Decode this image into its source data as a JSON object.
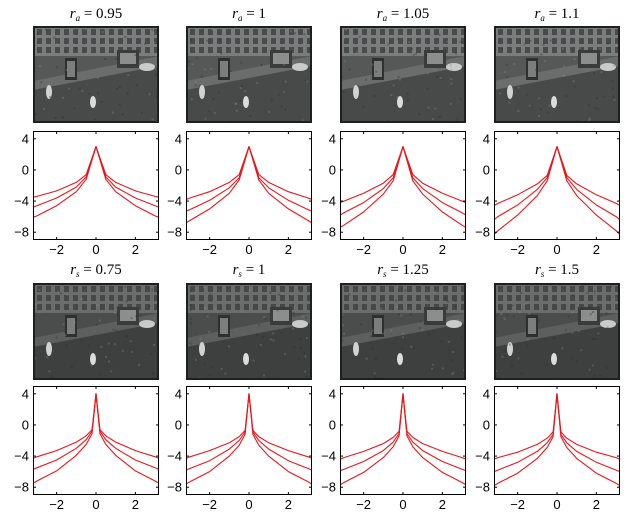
{
  "chart_data": [
    {
      "type": "line",
      "title_symbol": "r",
      "title_subscript": "a",
      "title_value": "0.95",
      "xlim": [
        -3.2,
        3.2
      ],
      "ylim": [
        -9,
        5
      ],
      "xticks": [
        -2,
        0,
        2
      ],
      "yticks": [
        4,
        0,
        -4,
        -8
      ],
      "x": [
        -3.2,
        -3,
        -2,
        -1,
        -0.5,
        0,
        0.5,
        1,
        2,
        3,
        3.2
      ],
      "series": [
        {
          "values": [
            -3.5,
            -3.4,
            -2.7,
            -1.6,
            -0.6,
            3,
            -0.6,
            -1.6,
            -2.7,
            -3.4,
            -3.5
          ]
        },
        {
          "values": [
            -4.8,
            -4.6,
            -3.6,
            -2.2,
            -0.9,
            3,
            -0.9,
            -2.2,
            -3.6,
            -4.6,
            -4.8
          ]
        },
        {
          "values": [
            -6.1,
            -5.9,
            -4.6,
            -2.8,
            -1.2,
            3,
            -1.2,
            -2.8,
            -4.6,
            -5.9,
            -6.1
          ]
        }
      ],
      "color": "#e8161b"
    },
    {
      "type": "line",
      "title_symbol": "r",
      "title_subscript": "a",
      "title_value": "1",
      "xlim": [
        -3.2,
        3.2
      ],
      "ylim": [
        -9,
        5
      ],
      "xticks": [
        -2,
        0,
        2
      ],
      "yticks": [
        4,
        0,
        -4,
        -8
      ],
      "x": [
        -3.2,
        -3,
        -2,
        -1,
        -0.5,
        0,
        0.5,
        1,
        2,
        3,
        3.2
      ],
      "series": [
        {
          "values": [
            -3.8,
            -3.6,
            -2.8,
            -1.6,
            -0.6,
            3,
            -0.6,
            -1.6,
            -2.8,
            -3.6,
            -3.8
          ]
        },
        {
          "values": [
            -5.3,
            -5.1,
            -3.9,
            -2.3,
            -1.0,
            3,
            -1.0,
            -2.3,
            -3.9,
            -5.1,
            -5.3
          ]
        },
        {
          "values": [
            -6.8,
            -6.5,
            -5.0,
            -3.0,
            -1.3,
            3,
            -1.3,
            -3.0,
            -5.0,
            -6.5,
            -6.8
          ]
        }
      ],
      "color": "#e8161b"
    },
    {
      "type": "line",
      "title_symbol": "r",
      "title_subscript": "a",
      "title_value": "1.05",
      "xlim": [
        -3.2,
        3.2
      ],
      "ylim": [
        -9,
        5
      ],
      "xticks": [
        -2,
        0,
        2
      ],
      "yticks": [
        4,
        0,
        -4,
        -8
      ],
      "x": [
        -3.2,
        -3,
        -2,
        -1,
        -0.5,
        0,
        0.5,
        1,
        2,
        3,
        3.2
      ],
      "series": [
        {
          "values": [
            -4.2,
            -4.0,
            -3.0,
            -1.7,
            -0.6,
            3,
            -0.6,
            -1.7,
            -3.0,
            -4.0,
            -4.2
          ]
        },
        {
          "values": [
            -5.8,
            -5.5,
            -4.2,
            -2.4,
            -1.0,
            3,
            -1.0,
            -2.4,
            -4.2,
            -5.5,
            -5.8
          ]
        },
        {
          "values": [
            -7.4,
            -7.1,
            -5.4,
            -3.1,
            -1.4,
            3,
            -1.4,
            -3.1,
            -5.4,
            -7.1,
            -7.4
          ]
        }
      ],
      "color": "#e8161b"
    },
    {
      "type": "line",
      "title_symbol": "r",
      "title_subscript": "a",
      "title_value": "1.1",
      "xlim": [
        -3.2,
        3.2
      ],
      "ylim": [
        -9,
        5
      ],
      "xticks": [
        -2,
        0,
        2
      ],
      "yticks": [
        4,
        0,
        -4,
        -8
      ],
      "x": [
        -3.2,
        -3,
        -2,
        -1,
        -0.5,
        0,
        0.5,
        1,
        2,
        3,
        3.2
      ],
      "series": [
        {
          "values": [
            -4.6,
            -4.3,
            -3.2,
            -1.8,
            -0.7,
            3,
            -0.7,
            -1.8,
            -3.2,
            -4.3,
            -4.6
          ]
        },
        {
          "values": [
            -6.4,
            -6.0,
            -4.5,
            -2.5,
            -1.0,
            3,
            -1.0,
            -2.5,
            -4.5,
            -6.0,
            -6.4
          ]
        },
        {
          "values": [
            -8.3,
            -7.8,
            -5.8,
            -3.3,
            -1.4,
            3,
            -1.4,
            -3.3,
            -5.8,
            -7.8,
            -8.3
          ]
        }
      ],
      "color": "#e8161b"
    },
    {
      "type": "line",
      "title_symbol": "r",
      "title_subscript": "s",
      "title_value": "0.75",
      "xlim": [
        -3.2,
        3.2
      ],
      "ylim": [
        -9,
        5
      ],
      "xticks": [
        -2,
        0,
        2
      ],
      "yticks": [
        4,
        0,
        -4,
        -8
      ],
      "x": [
        -3.2,
        -3,
        -2,
        -1,
        -0.5,
        -0.2,
        0,
        0.2,
        0.5,
        1,
        2,
        3,
        3.2
      ],
      "series": [
        {
          "values": [
            -4.3,
            -4.1,
            -3.3,
            -2.2,
            -1.4,
            -0.6,
            4,
            -0.6,
            -1.4,
            -2.2,
            -3.3,
            -4.1,
            -4.3
          ]
        },
        {
          "values": [
            -5.7,
            -5.5,
            -4.5,
            -3.0,
            -1.9,
            -0.8,
            4,
            -0.8,
            -1.9,
            -3.0,
            -4.5,
            -5.5,
            -5.7
          ]
        },
        {
          "values": [
            -7.5,
            -7.2,
            -5.9,
            -3.9,
            -2.5,
            -1.1,
            4,
            -1.1,
            -2.5,
            -3.9,
            -5.9,
            -7.2,
            -7.5
          ]
        }
      ],
      "color": "#e8161b"
    },
    {
      "type": "line",
      "title_symbol": "r",
      "title_subscript": "s",
      "title_value": "1",
      "xlim": [
        -3.2,
        3.2
      ],
      "ylim": [
        -9,
        5
      ],
      "xticks": [
        -2,
        0,
        2
      ],
      "yticks": [
        4,
        0,
        -4,
        -8
      ],
      "x": [
        -3.2,
        -3,
        -2,
        -1,
        -0.5,
        -0.2,
        0,
        0.2,
        0.5,
        1,
        2,
        3,
        3.2
      ],
      "series": [
        {
          "values": [
            -4.3,
            -4.1,
            -3.3,
            -2.3,
            -1.5,
            -0.7,
            4,
            -0.7,
            -1.5,
            -2.3,
            -3.3,
            -4.1,
            -4.3
          ]
        },
        {
          "values": [
            -5.8,
            -5.6,
            -4.6,
            -3.1,
            -2.0,
            -0.9,
            4,
            -0.9,
            -2.0,
            -3.1,
            -4.6,
            -5.6,
            -5.8
          ]
        },
        {
          "values": [
            -7.6,
            -7.3,
            -6.0,
            -4.0,
            -2.6,
            -1.2,
            4,
            -1.2,
            -2.6,
            -4.0,
            -6.0,
            -7.3,
            -7.6
          ]
        }
      ],
      "color": "#e8161b"
    },
    {
      "type": "line",
      "title_symbol": "r",
      "title_subscript": "s",
      "title_value": "1.25",
      "xlim": [
        -3.2,
        3.2
      ],
      "ylim": [
        -9,
        5
      ],
      "xticks": [
        -2,
        0,
        2
      ],
      "yticks": [
        4,
        0,
        -4,
        -8
      ],
      "x": [
        -3.2,
        -3,
        -2,
        -1,
        -0.5,
        -0.2,
        0,
        0.2,
        0.5,
        1,
        2,
        3,
        3.2
      ],
      "series": [
        {
          "values": [
            -4.4,
            -4.2,
            -3.4,
            -2.4,
            -1.6,
            -0.8,
            4,
            -0.8,
            -1.6,
            -2.4,
            -3.4,
            -4.2,
            -4.4
          ]
        },
        {
          "values": [
            -5.9,
            -5.7,
            -4.7,
            -3.3,
            -2.2,
            -1.1,
            4,
            -1.1,
            -2.2,
            -3.3,
            -4.7,
            -5.7,
            -5.9
          ]
        },
        {
          "values": [
            -7.7,
            -7.4,
            -6.1,
            -4.2,
            -2.8,
            -1.4,
            4,
            -1.4,
            -2.8,
            -4.2,
            -6.1,
            -7.4,
            -7.7
          ]
        }
      ],
      "color": "#e8161b"
    },
    {
      "type": "line",
      "title_symbol": "r",
      "title_subscript": "s",
      "title_value": "1.5",
      "xlim": [
        -3.2,
        3.2
      ],
      "ylim": [
        -9,
        5
      ],
      "xticks": [
        -2,
        0,
        2
      ],
      "yticks": [
        4,
        0,
        -4,
        -8
      ],
      "x": [
        -3.2,
        -3,
        -2,
        -1,
        -0.5,
        -0.2,
        0,
        0.2,
        0.5,
        1,
        2,
        3,
        3.2
      ],
      "series": [
        {
          "values": [
            -4.4,
            -4.2,
            -3.5,
            -2.5,
            -1.7,
            -0.9,
            4,
            -0.9,
            -1.7,
            -2.5,
            -3.5,
            -4.2,
            -4.4
          ]
        },
        {
          "values": [
            -6.0,
            -5.8,
            -4.8,
            -3.4,
            -2.3,
            -1.2,
            4,
            -1.2,
            -2.3,
            -3.4,
            -4.8,
            -5.8,
            -6.0
          ]
        },
        {
          "values": [
            -7.8,
            -7.5,
            -6.2,
            -4.3,
            -2.9,
            -1.5,
            4,
            -1.5,
            -2.9,
            -4.3,
            -6.2,
            -7.5,
            -7.8
          ]
        }
      ],
      "color": "#e8161b"
    }
  ]
}
